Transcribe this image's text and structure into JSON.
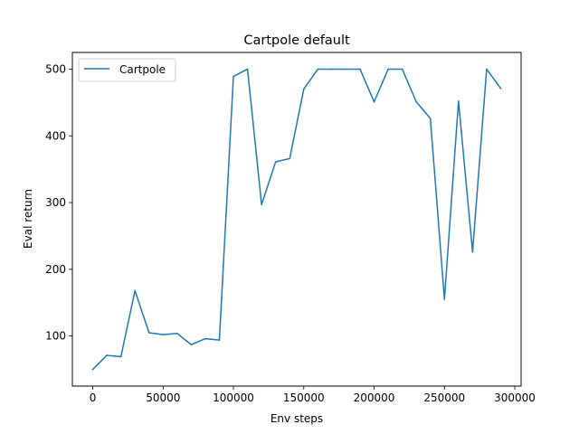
{
  "chart_data": {
    "type": "line",
    "title": "Cartpole default",
    "xlabel": "Env steps",
    "ylabel": "Eval return",
    "xlim": [
      -14500,
      304500
    ],
    "ylim": [
      25,
      525
    ],
    "xticks": [
      0,
      50000,
      100000,
      150000,
      200000,
      250000,
      300000
    ],
    "yticks": [
      100,
      200,
      300,
      400,
      500
    ],
    "grid": false,
    "legend_position": "top-left",
    "series": [
      {
        "name": "Cartpole",
        "color": "#1f77b4",
        "x": [
          0,
          10000,
          20000,
          30000,
          40000,
          50000,
          60000,
          70000,
          80000,
          90000,
          100000,
          110000,
          120000,
          130000,
          140000,
          150000,
          160000,
          170000,
          180000,
          190000,
          200000,
          210000,
          220000,
          230000,
          240000,
          250000,
          260000,
          270000,
          280000,
          290000
        ],
        "y": [
          50,
          71,
          69,
          168,
          105,
          102,
          104,
          87,
          96,
          94,
          489,
          500,
          297,
          361,
          366,
          470,
          500,
          500,
          500,
          500,
          451,
          500,
          500,
          451,
          426,
          155,
          452,
          226,
          500,
          471
        ]
      }
    ]
  }
}
